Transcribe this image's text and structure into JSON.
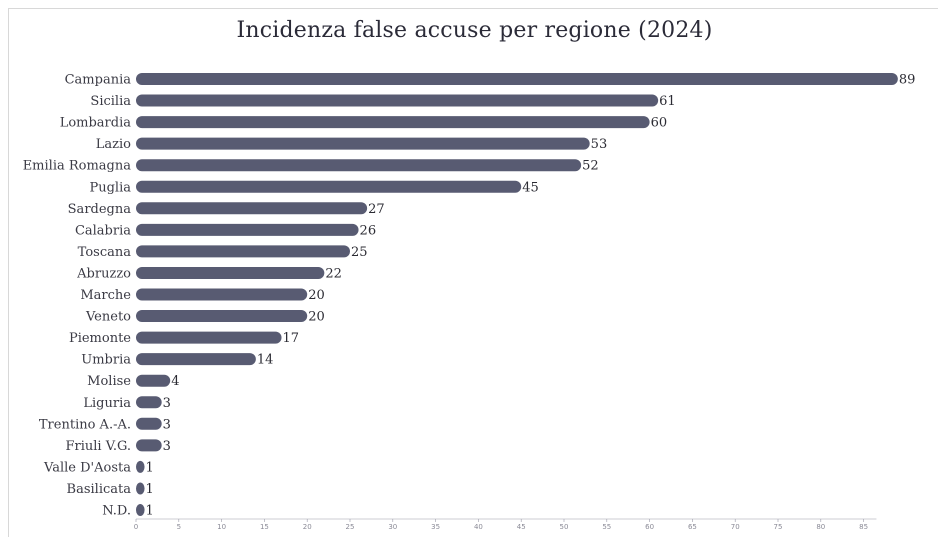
{
  "chart_data": {
    "type": "bar",
    "orientation": "horizontal",
    "title": "Incidenza false accuse per regione (2024)",
    "xlabel": "",
    "ylabel": "",
    "categories": [
      "Campania",
      "Sicilia",
      "Lombardia",
      "Lazio",
      "Emilia Romagna",
      "Puglia",
      "Sardegna",
      "Calabria",
      "Toscana",
      "Abruzzo",
      "Marche",
      "Veneto",
      "Piemonte",
      "Umbria",
      "Molise",
      "Liguria",
      "Trentino A.-A.",
      "Friuli V.G.",
      "Valle D'Aosta",
      "Basilicata",
      "N.D."
    ],
    "values": [
      89,
      61,
      60,
      53,
      52,
      45,
      27,
      26,
      25,
      22,
      20,
      20,
      17,
      14,
      4,
      3,
      3,
      3,
      1,
      1,
      1
    ],
    "xlim": [
      0,
      90
    ],
    "xticks": [
      0,
      5,
      10,
      15,
      20,
      25,
      30,
      35,
      40,
      45,
      50,
      55,
      60,
      65,
      70,
      75,
      80,
      85
    ],
    "grid": false,
    "legend": "none",
    "colors": {
      "bar": "#585b72",
      "text": "#2b2b38",
      "axis": "#9a9aa8"
    }
  }
}
